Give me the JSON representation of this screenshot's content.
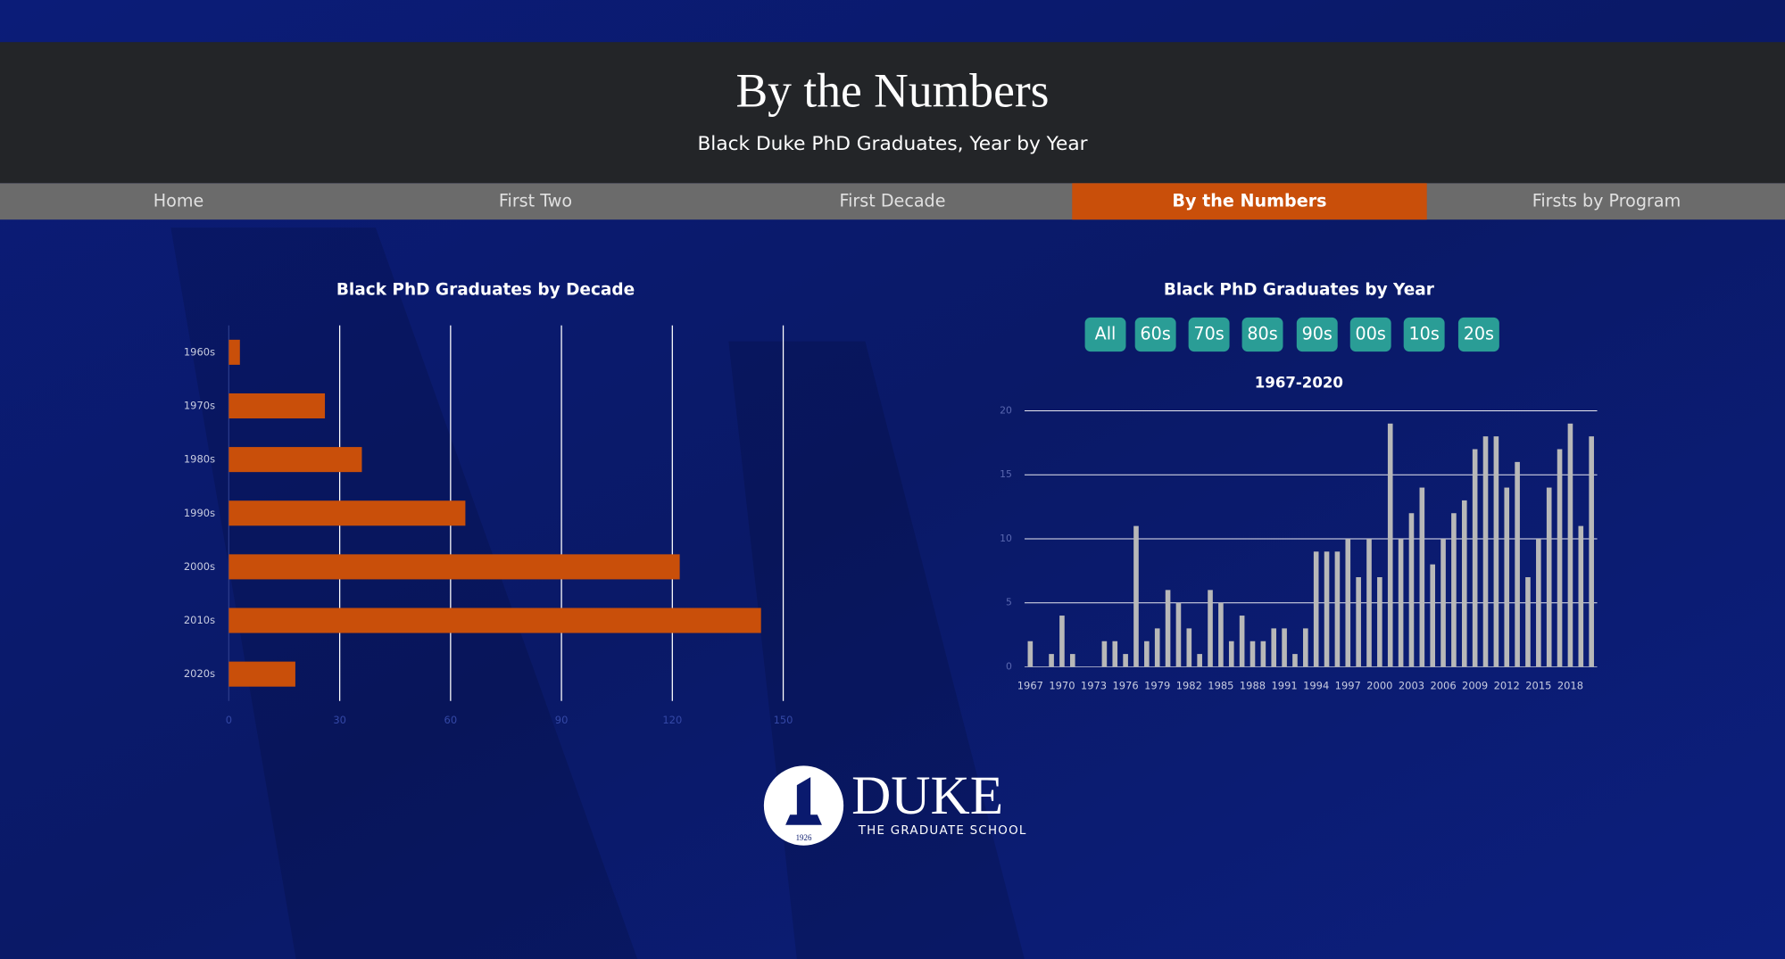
{
  "header": {
    "title": "By the Numbers",
    "subtitle": "Black Duke PhD Graduates, Year by Year"
  },
  "nav": [
    "Home",
    "First Two",
    "First Decade",
    "By the Numbers",
    "Firsts by Program"
  ],
  "nav_active": 3,
  "chart_data": [
    {
      "type": "bar",
      "orientation": "horizontal",
      "title": "Black PhD Graduates by Decade",
      "categories": [
        "1960s",
        "1970s",
        "1980s",
        "1990s",
        "2000s",
        "2010s",
        "2020s"
      ],
      "values": [
        3,
        26,
        36,
        64,
        122,
        144,
        18
      ],
      "color": "#c94f0a",
      "xlim": [
        0,
        150
      ],
      "xticks": [
        0,
        30,
        60,
        90,
        120,
        150
      ],
      "grid": true
    },
    {
      "type": "bar",
      "orientation": "vertical",
      "title": "Black PhD Graduates by Year",
      "filter_buttons": [
        "All",
        "60s",
        "70s",
        "80s",
        "90s",
        "00s",
        "10s",
        "20s"
      ],
      "subtitle": "1967-2020",
      "categories": [
        "1967",
        null,
        null,
        "1970",
        null,
        null,
        "1973",
        null,
        null,
        "1976",
        null,
        null,
        "1979",
        null,
        null,
        "1982",
        null,
        null,
        "1985",
        null,
        null,
        "1988",
        null,
        null,
        "1991",
        null,
        null,
        "1994",
        null,
        null,
        "1997",
        null,
        null,
        "2000",
        null,
        null,
        "2003",
        null,
        null,
        "2006",
        null,
        null,
        "2009",
        null,
        null,
        "2012",
        null,
        null,
        "2015",
        null,
        null,
        "2018",
        null,
        null
      ],
      "values": [
        2,
        0,
        1,
        4,
        1,
        0,
        0,
        2,
        2,
        1,
        11,
        2,
        3,
        6,
        5,
        3,
        1,
        6,
        5,
        2,
        4,
        2,
        2,
        3,
        3,
        1,
        3,
        9,
        9,
        9,
        10,
        7,
        10,
        7,
        19,
        10,
        12,
        14,
        8,
        10,
        12,
        13,
        17,
        18,
        18,
        14,
        16,
        7,
        10,
        14,
        17,
        19,
        11,
        18
      ],
      "color": "#b8b8b8",
      "ylim": [
        0,
        20
      ],
      "yticks": [
        0,
        5,
        10,
        15,
        20
      ],
      "grid": true
    }
  ],
  "logo": {
    "name": "DUKE",
    "subtitle": "THE GRADUATE SCHOOL",
    "year": "1926"
  }
}
